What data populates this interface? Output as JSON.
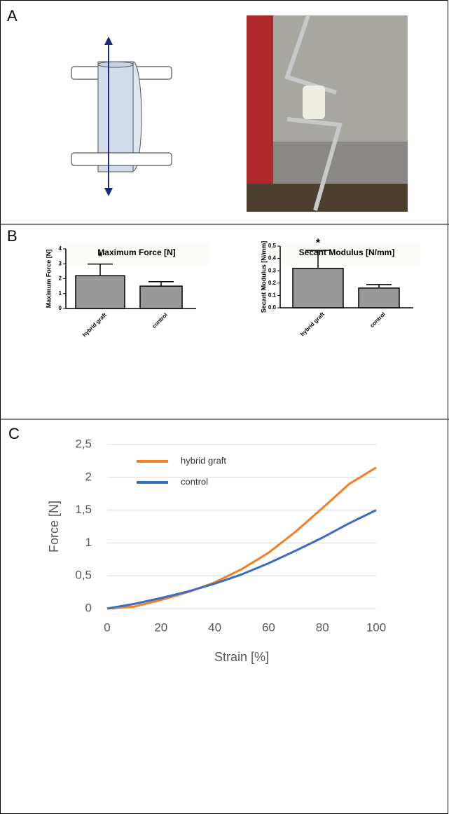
{
  "panels": [
    "A",
    "B",
    "C"
  ],
  "chart_data": [
    {
      "type": "bar",
      "title": "Maximum Force [N]",
      "ylabel": "Maximum Force [N]",
      "categories": [
        "hybrid graft",
        "control"
      ],
      "values": [
        2.2,
        1.5
      ],
      "errors": [
        0.78,
        0.3
      ],
      "color": "#999999",
      "ylim": [
        0,
        4
      ],
      "yticks": [
        0,
        1,
        2,
        3,
        4
      ],
      "annotation": "*"
    },
    {
      "type": "bar",
      "title": "Secant Modulus [N/mm]",
      "ylabel": "Secant Modulus [N/mm]",
      "categories": [
        "hybrid graft",
        "control"
      ],
      "values": [
        0.32,
        0.16
      ],
      "errors": [
        0.145,
        0.028
      ],
      "color": "#999999",
      "ylim": [
        0,
        0.5
      ],
      "yticks": [
        {
          "value": 0,
          "label": "0.0"
        },
        0.1,
        0.2,
        0.3,
        0.4,
        0.5
      ],
      "annotation": "*"
    },
    {
      "type": "line",
      "xlabel": "Strain [%]",
      "ylabel": "Force [N]",
      "x": [
        0,
        10,
        20,
        30,
        40,
        50,
        60,
        70,
        80,
        90,
        100
      ],
      "series": [
        {
          "name": "hybrid graft",
          "color": "#f07f27",
          "values": [
            0,
            0.03,
            0.13,
            0.25,
            0.4,
            0.6,
            0.85,
            1.17,
            1.53,
            1.9,
            2.15
          ]
        },
        {
          "name": "control",
          "color": "#3a6cc2",
          "values": [
            0,
            0.07,
            0.16,
            0.26,
            0.38,
            0.52,
            0.69,
            0.88,
            1.08,
            1.3,
            1.5
          ]
        }
      ],
      "xlim": [
        0,
        100
      ],
      "xticks": [
        0,
        20,
        40,
        60,
        80,
        100
      ],
      "ylim": [
        0,
        2.5
      ],
      "yticks": [
        0,
        {
          "value": 0.5,
          "label": "0,5"
        },
        1,
        {
          "value": 1.5,
          "label": "1,5"
        },
        2,
        {
          "value": 2.5,
          "label": "2,5"
        }
      ],
      "grid": true
    }
  ]
}
